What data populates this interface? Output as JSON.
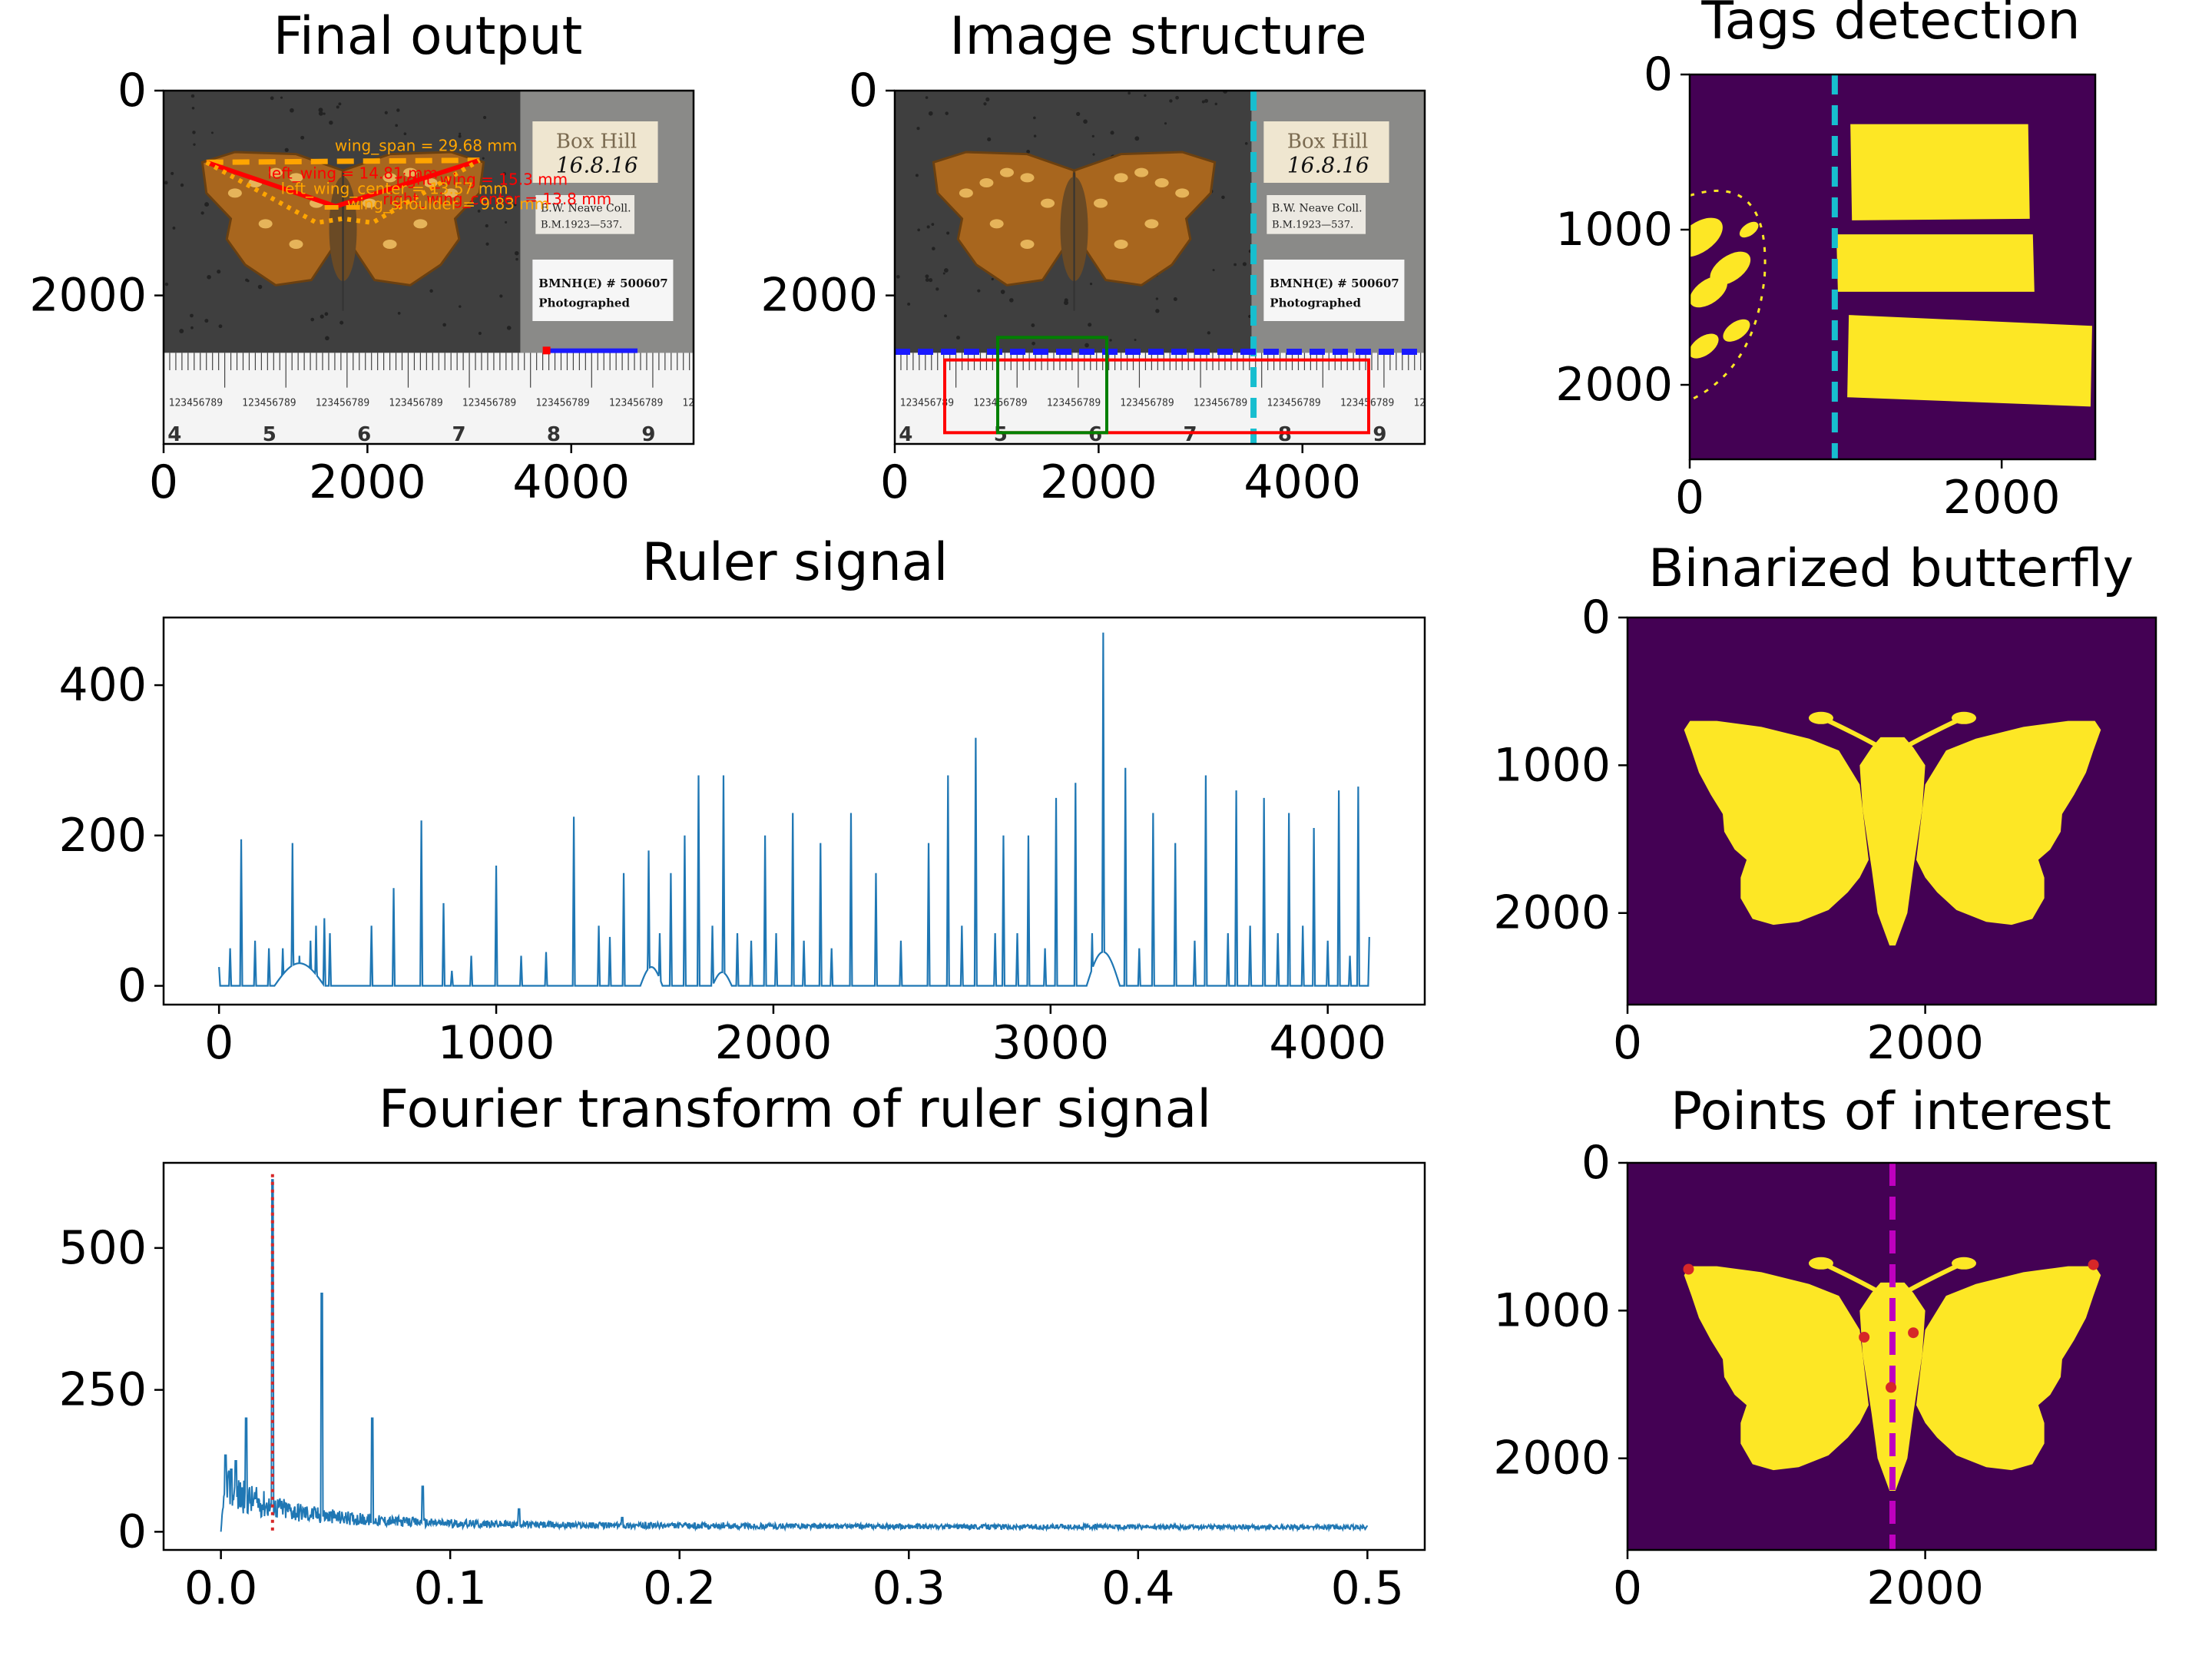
{
  "colors": {
    "series_line": "#1f77b4",
    "viridis_dark": "#440154",
    "viridis_yellow": "#fde725",
    "marker_red": "#d62728",
    "cyan_dash": "#17becf",
    "blue_dash": "#1a1aff",
    "magenta_dash": "#bf00bf",
    "orange_measure": "#ffa500",
    "red_measure": "#ff0000",
    "green_box": "#008000",
    "photo_background": "#3f3f3f",
    "ruler_white": "#f4f4f4"
  },
  "chart_data": [
    {
      "id": "final",
      "type": "image",
      "title": "Final output",
      "xlim": [
        0,
        5200
      ],
      "ylim": [
        3450,
        0
      ],
      "xticks": [
        {
          "v": 0,
          "label": "0"
        },
        {
          "v": 2000,
          "label": "2000"
        },
        {
          "v": 4000,
          "label": "4000"
        }
      ],
      "yticks": [
        {
          "v": 0,
          "label": "0"
        },
        {
          "v": 2000,
          "label": "2000"
        }
      ],
      "content": "specimen photo with labels and ruler",
      "specimen_labels": [
        "Box Hill",
        "16.8.16",
        "B.W. Neave Coll.",
        "B.M.1923—537.",
        "BMNH(E) # 500607",
        "Photographed"
      ],
      "ruler_digits": [
        "4",
        "5",
        "6",
        "7",
        "8",
        "9"
      ],
      "ruler_fine_text": "123456789",
      "annotations": [
        "wing_span = 29.68 mm",
        "left_wing = 14.81 mm",
        "right_wing = 15.3 mm",
        "left_wing_center = 13.57 mm",
        "right_wing_center = 13.8 mm",
        "wing_shoulder = 9.83 mm"
      ]
    },
    {
      "id": "structure",
      "type": "image",
      "title": "Image structure",
      "xlim": [
        0,
        5200
      ],
      "ylim": [
        3450,
        0
      ],
      "xticks": [
        {
          "v": 0,
          "label": "0"
        },
        {
          "v": 2000,
          "label": "2000"
        },
        {
          "v": 4000,
          "label": "4000"
        }
      ],
      "yticks": [
        {
          "v": 0,
          "label": "0"
        },
        {
          "v": 2000,
          "label": "2000"
        }
      ],
      "content": "specimen photo with ruler and tag regions boxed",
      "tag_separator_x": 3520,
      "ruler_top_y": 2550,
      "ruler_box": [
        490,
        2630,
        4650,
        3340
      ],
      "reference_box": [
        1010,
        2410,
        2080,
        3340
      ]
    },
    {
      "id": "tags",
      "type": "heatmap",
      "title": "Tags detection",
      "xlim": [
        0,
        2600
      ],
      "ylim": [
        2480,
        0
      ],
      "xticks": [
        {
          "v": 0,
          "label": "0"
        },
        {
          "v": 2000,
          "label": "2000"
        }
      ],
      "yticks": [
        {
          "v": 0,
          "label": "0"
        },
        {
          "v": 1000,
          "label": "1000"
        },
        {
          "v": 2000,
          "label": "2000"
        }
      ],
      "separator_x": 930,
      "tag_regions": [
        [
          [
            1030,
            320
          ],
          [
            2170,
            320
          ],
          [
            2180,
            930
          ],
          [
            1040,
            940
          ]
        ],
        [
          [
            940,
            1030
          ],
          [
            2200,
            1030
          ],
          [
            2210,
            1400
          ],
          [
            950,
            1400
          ]
        ],
        [
          [
            1020,
            1550
          ],
          [
            2580,
            1620
          ],
          [
            2570,
            2140
          ],
          [
            1010,
            2080
          ]
        ]
      ]
    },
    {
      "id": "ruler",
      "type": "line",
      "title": "Ruler signal",
      "xlim": [
        -200,
        4350
      ],
      "ylim": [
        -25,
        490
      ],
      "xticks": [
        {
          "v": 0,
          "label": "0"
        },
        {
          "v": 1000,
          "label": "1000"
        },
        {
          "v": 2000,
          "label": "2000"
        },
        {
          "v": 3000,
          "label": "3000"
        },
        {
          "v": 4000,
          "label": "4000"
        }
      ],
      "yticks": [
        {
          "v": 0,
          "label": "0"
        },
        {
          "v": 200,
          "label": "200"
        },
        {
          "v": 400,
          "label": "400"
        }
      ],
      "length": 4150,
      "peaks": [
        [
          0,
          25
        ],
        [
          40,
          50
        ],
        [
          80,
          195
        ],
        [
          130,
          60
        ],
        [
          180,
          50
        ],
        [
          230,
          50
        ],
        [
          265,
          190
        ],
        [
          290,
          40
        ],
        [
          330,
          60
        ],
        [
          350,
          80
        ],
        [
          380,
          90
        ],
        [
          400,
          70
        ],
        [
          550,
          80
        ],
        [
          630,
          130
        ],
        [
          730,
          220
        ],
        [
          810,
          110
        ],
        [
          840,
          20
        ],
        [
          910,
          40
        ],
        [
          1000,
          160
        ],
        [
          1090,
          40
        ],
        [
          1180,
          45
        ],
        [
          1280,
          225
        ],
        [
          1370,
          80
        ],
        [
          1410,
          65
        ],
        [
          1460,
          150
        ],
        [
          1550,
          180
        ],
        [
          1590,
          70
        ],
        [
          1630,
          150
        ],
        [
          1680,
          200
        ],
        [
          1730,
          280
        ],
        [
          1780,
          80
        ],
        [
          1820,
          280
        ],
        [
          1870,
          70
        ],
        [
          1920,
          60
        ],
        [
          1970,
          200
        ],
        [
          2010,
          70
        ],
        [
          2070,
          230
        ],
        [
          2110,
          60
        ],
        [
          2170,
          190
        ],
        [
          2210,
          50
        ],
        [
          2280,
          230
        ],
        [
          2370,
          150
        ],
        [
          2460,
          60
        ],
        [
          2560,
          190
        ],
        [
          2630,
          280
        ],
        [
          2680,
          80
        ],
        [
          2730,
          330
        ],
        [
          2800,
          70
        ],
        [
          2830,
          200
        ],
        [
          2880,
          70
        ],
        [
          2920,
          200
        ],
        [
          2980,
          50
        ],
        [
          3020,
          250
        ],
        [
          3090,
          270
        ],
        [
          3150,
          70
        ],
        [
          3190,
          470
        ],
        [
          3270,
          290
        ],
        [
          3320,
          50
        ],
        [
          3370,
          230
        ],
        [
          3450,
          190
        ],
        [
          3520,
          60
        ],
        [
          3560,
          280
        ],
        [
          3640,
          70
        ],
        [
          3670,
          260
        ],
        [
          3720,
          80
        ],
        [
          3770,
          250
        ],
        [
          3820,
          70
        ],
        [
          3860,
          230
        ],
        [
          3910,
          80
        ],
        [
          3950,
          210
        ],
        [
          4000,
          60
        ],
        [
          4040,
          260
        ],
        [
          4080,
          40
        ],
        [
          4110,
          265
        ],
        [
          4150,
          65
        ]
      ],
      "humps": [
        [
          200,
          380,
          30
        ],
        [
          1520,
          1600,
          25
        ],
        [
          1780,
          1850,
          18
        ],
        [
          3130,
          3250,
          45
        ]
      ]
    },
    {
      "id": "binarized",
      "type": "heatmap",
      "title": "Binarized butterfly",
      "xlim": [
        0,
        3550
      ],
      "ylim": [
        2620,
        0
      ],
      "xticks": [
        {
          "v": 0,
          "label": "0"
        },
        {
          "v": 2000,
          "label": "2000"
        }
      ],
      "yticks": [
        {
          "v": 0,
          "label": "0"
        },
        {
          "v": 1000,
          "label": "1000"
        },
        {
          "v": 2000,
          "label": "2000"
        }
      ],
      "content": "butterfly silhouette mask"
    },
    {
      "id": "fourier",
      "type": "line",
      "title": "Fourier transform of ruler signal",
      "xlim": [
        -0.025,
        0.525
      ],
      "ylim": [
        -32,
        650
      ],
      "xticks": [
        {
          "v": 0.0,
          "label": "0.0"
        },
        {
          "v": 0.1,
          "label": "0.1"
        },
        {
          "v": 0.2,
          "label": "0.2"
        },
        {
          "v": 0.3,
          "label": "0.3"
        },
        {
          "v": 0.4,
          "label": "0.4"
        },
        {
          "v": 0.5,
          "label": "0.5"
        }
      ],
      "yticks": [
        {
          "v": 0,
          "label": "0"
        },
        {
          "v": 250,
          "label": "250"
        },
        {
          "v": 500,
          "label": "500"
        }
      ],
      "detected_frequency": 0.0225,
      "peaks": [
        [
          0.002,
          135
        ],
        [
          0.0045,
          110
        ],
        [
          0.0065,
          125
        ],
        [
          0.011,
          200
        ],
        [
          0.0225,
          620
        ],
        [
          0.044,
          420
        ],
        [
          0.066,
          200
        ],
        [
          0.088,
          80
        ],
        [
          0.13,
          40
        ],
        [
          0.175,
          25
        ]
      ]
    },
    {
      "id": "poi",
      "type": "heatmap",
      "title": "Points of interest",
      "xlim": [
        0,
        3550
      ],
      "ylim": [
        2620,
        0
      ],
      "xticks": [
        {
          "v": 0,
          "label": "0"
        },
        {
          "v": 2000,
          "label": "2000"
        }
      ],
      "yticks": [
        {
          "v": 0,
          "label": "0"
        },
        {
          "v": 1000,
          "label": "1000"
        },
        {
          "v": 2000,
          "label": "2000"
        }
      ],
      "axis_x": 1780,
      "points": [
        [
          410,
          720
        ],
        [
          1590,
          1180
        ],
        [
          1770,
          1520
        ],
        [
          1920,
          1150
        ],
        [
          3130,
          690
        ]
      ]
    }
  ]
}
